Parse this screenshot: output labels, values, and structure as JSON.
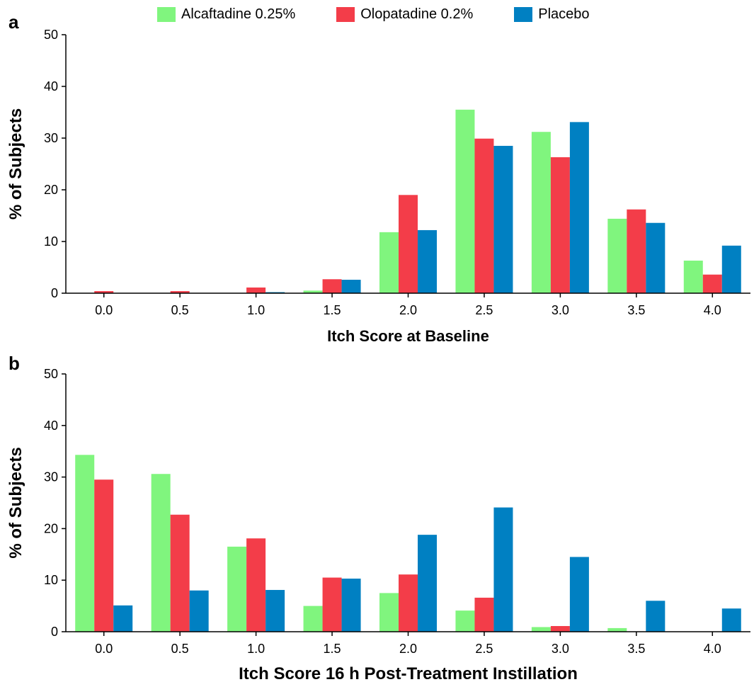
{
  "legend": {
    "items": [
      {
        "label": "Alcaftadine 0.25%",
        "color": "#80f57e"
      },
      {
        "label": "Olopatadine 0.2%",
        "color": "#f33d49"
      },
      {
        "label": "Placebo",
        "color": "#0080c2"
      }
    ]
  },
  "chart_data": [
    {
      "type": "bar",
      "panel": "a",
      "xlabel": "Itch Score at Baseline",
      "ylabel": "% of Subjects",
      "ylim": [
        0,
        50
      ],
      "yticks": [
        0,
        10,
        20,
        30,
        40,
        50
      ],
      "categories": [
        "0.0",
        "0.5",
        "1.0",
        "1.5",
        "2.0",
        "2.5",
        "3.0",
        "3.5",
        "4.0"
      ],
      "series": [
        {
          "name": "Alcaftadine 0.25%",
          "color": "#80f57e",
          "values": [
            0,
            0,
            0,
            0.5,
            11.8,
            35.5,
            31.2,
            14.4,
            6.3
          ]
        },
        {
          "name": "Olopatadine 0.2%",
          "color": "#f33d49",
          "values": [
            0.4,
            0.4,
            1.1,
            2.7,
            19.0,
            29.9,
            26.3,
            16.2,
            3.6
          ]
        },
        {
          "name": "Placebo",
          "color": "#0080c2",
          "values": [
            0,
            0,
            0.2,
            2.6,
            12.2,
            28.5,
            33.1,
            13.6,
            9.2
          ]
        }
      ],
      "grid": false
    },
    {
      "type": "bar",
      "panel": "b",
      "xlabel": "Itch Score 16 h Post-Treatment Instillation",
      "ylabel": "% of Subjects",
      "ylim": [
        0,
        50
      ],
      "yticks": [
        0,
        10,
        20,
        30,
        40,
        50
      ],
      "categories": [
        "0.0",
        "0.5",
        "1.0",
        "1.5",
        "2.0",
        "2.5",
        "3.0",
        "3.5",
        "4.0"
      ],
      "series": [
        {
          "name": "Alcaftadine 0.25%",
          "color": "#80f57e",
          "values": [
            34.3,
            30.6,
            16.5,
            5.0,
            7.5,
            4.1,
            0.9,
            0.7,
            0
          ]
        },
        {
          "name": "Olopatadine 0.2%",
          "color": "#f33d49",
          "values": [
            29.5,
            22.7,
            18.1,
            10.5,
            11.1,
            6.6,
            1.1,
            0,
            0
          ]
        },
        {
          "name": "Placebo",
          "color": "#0080c2",
          "values": [
            5.1,
            8.0,
            8.1,
            10.3,
            18.8,
            24.1,
            14.5,
            6.0,
            4.5
          ]
        }
      ],
      "grid": false
    }
  ]
}
